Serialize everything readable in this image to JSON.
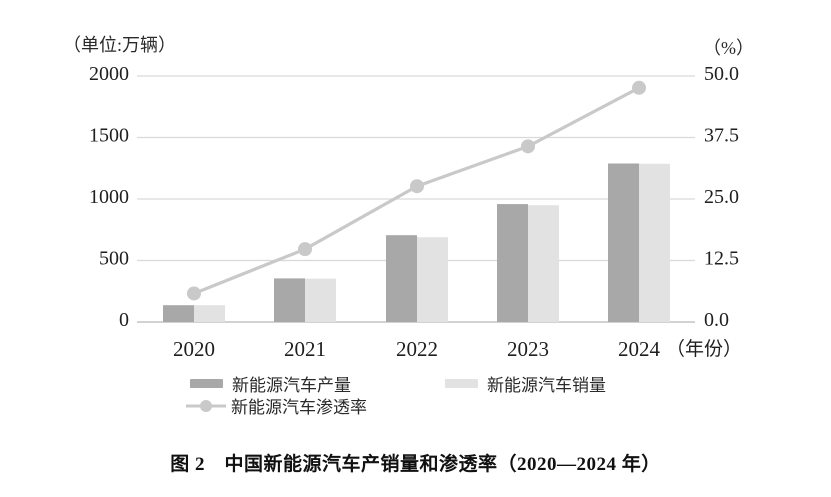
{
  "figure": {
    "unit_left": "（单位:万辆）",
    "unit_right": "（%）",
    "caption": "图 2　中国新能源汽车产销量和渗透率（2020—2024 年）"
  },
  "chart_data": {
    "type": "bar+line combo",
    "categories": [
      "2020",
      "2021",
      "2022",
      "2023",
      "2024"
    ],
    "series": [
      {
        "name": "新能源汽车产量",
        "type": "bar",
        "axis": "left",
        "color": "#a8a8a8",
        "values": [
          136.6,
          354.5,
          705.8,
          958.7,
          1288.8
        ]
      },
      {
        "name": "新能源汽车销量",
        "type": "bar",
        "axis": "left",
        "color": "#e2e2e2",
        "values": [
          136.7,
          352.1,
          688.7,
          949.5,
          1286.6
        ]
      },
      {
        "name": "新能源汽车渗透率",
        "type": "line",
        "axis": "right",
        "color": "#c9c9c9",
        "values": [
          5.8,
          14.8,
          27.6,
          35.7,
          47.6
        ]
      }
    ],
    "left_axis": {
      "unit": "（单位:万辆）",
      "ticks": [
        0,
        500,
        1000,
        1500,
        2000
      ],
      "range": [
        0,
        2000
      ]
    },
    "right_axis": {
      "unit": "（%）",
      "tick_labels": [
        "0.0",
        "12.5",
        "25.0",
        "37.5",
        "50.0"
      ],
      "ticks": [
        0,
        12.5,
        25,
        37.5,
        50
      ],
      "range": [
        0,
        50
      ]
    },
    "xaxis_suffix": "（年份）",
    "grid": true,
    "grid_color": "#d9d9d9",
    "axis_color": "#c4c4c4",
    "text_color": "#1f1f1f",
    "legend_position": "bottom",
    "title": "图 2　中国新能源汽车产销量和渗透率（2020—2024 年）"
  }
}
